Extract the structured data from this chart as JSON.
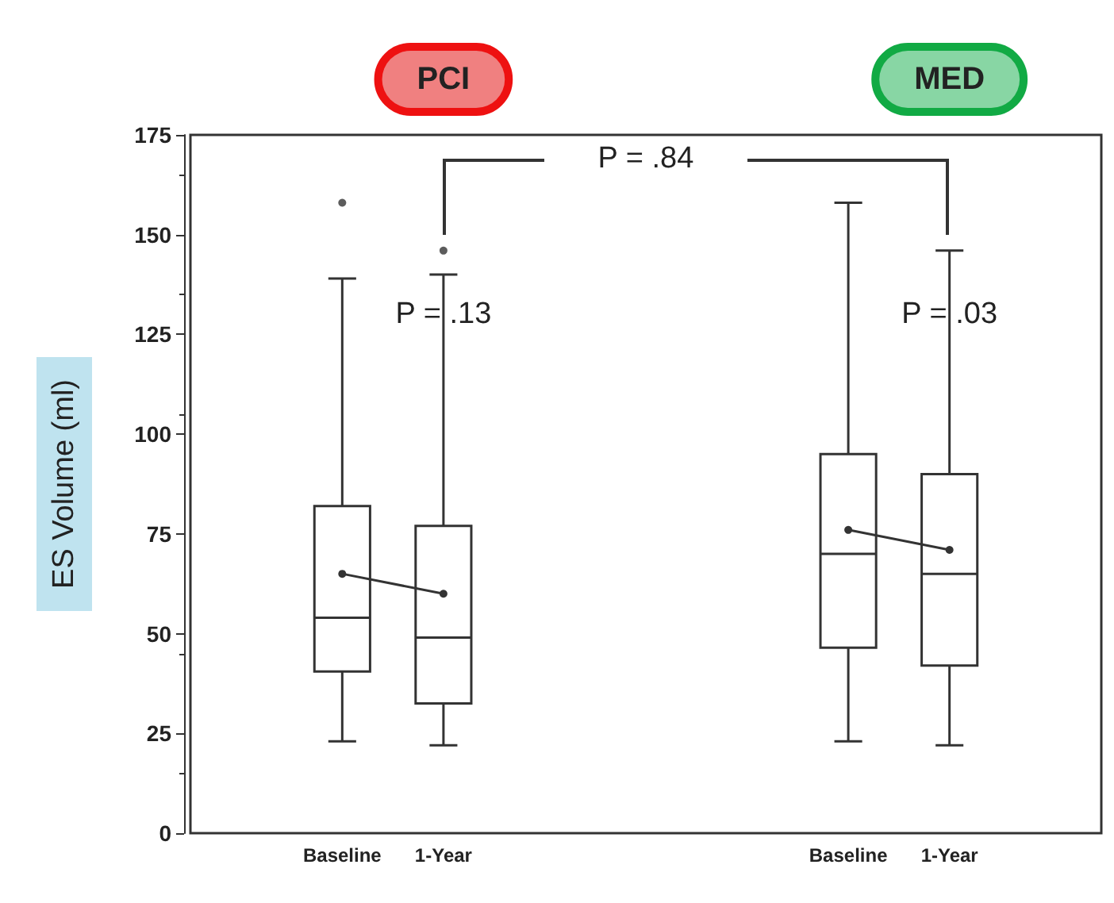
{
  "chart_data": {
    "type": "box",
    "ylabel": "ES Volume (ml)",
    "categories": [
      null,
      "Baseline",
      "1-Year",
      null,
      null,
      null,
      "Baseline",
      "1-Year",
      null
    ],
    "series": [
      {
        "color": "#333333",
        "boxes": [
          null,
          {
            "low": 23,
            "q1": 40.5,
            "median": 54,
            "q3": 82,
            "high": 139,
            "outliers": [
              158
            ]
          },
          {
            "low": 22,
            "q1": 32.5,
            "median": 49,
            "q3": 77,
            "high": 140,
            "outliers": [
              146
            ]
          },
          null,
          null,
          null,
          {
            "low": 23,
            "q1": 46.5,
            "median": 70,
            "q3": 95,
            "high": 158
          },
          {
            "low": 22,
            "q1": 42,
            "median": 65,
            "q3": 90,
            "high": 146
          },
          null
        ]
      },
      {
        "type": "line",
        "color": "#333333",
        "values": [
          null,
          65,
          60,
          null,
          null,
          null,
          76,
          71,
          null
        ]
      }
    ],
    "marker": "circle",
    "ylim": [
      0,
      175
    ],
    "yticks": [
      0,
      25,
      50,
      75,
      100,
      125,
      150,
      175
    ],
    "grid": false,
    "annotations": [
      "PCI",
      "MED",
      "P = .84",
      "P = .13",
      "P = .03"
    ]
  }
}
